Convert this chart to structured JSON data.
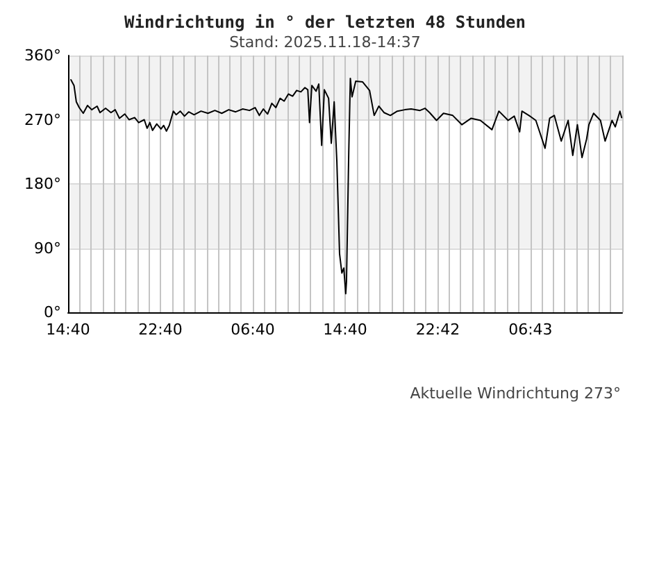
{
  "chart_data": {
    "type": "line",
    "title": "Windrichtung in ° der letzten 48 Stunden",
    "subtitle": "Stand: 2025.11.18-14:37",
    "annotations": [
      "Aktuelle Windrichtung 273°"
    ],
    "x": [
      "2025-11-16T14:55",
      "2025-11-16T15:11",
      "2025-11-16T15:23",
      "2025-11-16T15:38",
      "2025-11-16T15:59",
      "2025-11-16T16:21",
      "2025-11-16T16:43",
      "2025-11-16T17:11",
      "2025-11-16T17:26",
      "2025-11-16T17:55",
      "2025-11-16T18:23",
      "2025-11-16T18:45",
      "2025-11-16T19:07",
      "2025-11-16T19:35",
      "2025-11-16T19:57",
      "2025-11-16T20:26",
      "2025-11-16T20:47",
      "2025-11-16T21:16",
      "2025-11-16T21:31",
      "2025-11-16T21:45",
      "2025-11-16T21:59",
      "2025-11-16T22:21",
      "2025-11-16T22:43",
      "2025-11-16T22:57",
      "2025-11-16T23:11",
      "2025-11-16T23:26",
      "2025-11-16T23:47",
      "2025-11-17T00:02",
      "2025-11-17T00:23",
      "2025-11-17T00:45",
      "2025-11-17T01:07",
      "2025-11-17T01:35",
      "2025-11-17T02:11",
      "2025-11-17T02:47",
      "2025-11-17T03:23",
      "2025-11-17T03:59",
      "2025-11-17T04:35",
      "2025-11-17T05:11",
      "2025-11-17T05:47",
      "2025-11-17T06:23",
      "2025-11-17T06:52",
      "2025-11-17T07:14",
      "2025-11-17T07:35",
      "2025-11-17T07:57",
      "2025-11-17T08:19",
      "2025-11-17T08:40",
      "2025-11-17T09:02",
      "2025-11-17T09:23",
      "2025-11-17T09:45",
      "2025-11-17T10:07",
      "2025-11-17T10:28",
      "2025-11-17T10:50",
      "2025-11-17T11:11",
      "2025-11-17T11:26",
      "2025-11-17T11:35",
      "2025-11-17T11:47",
      "2025-11-17T12:09",
      "2025-11-17T12:23",
      "2025-11-17T12:38",
      "2025-11-17T12:52",
      "2025-11-17T13:14",
      "2025-11-17T13:28",
      "2025-11-17T13:43",
      "2025-11-17T13:57",
      "2025-11-17T14:11",
      "2025-11-17T14:23",
      "2025-11-17T14:33",
      "2025-11-17T14:43",
      "2025-11-17T14:47",
      "2025-11-17T14:59",
      "2025-11-17T15:07",
      "2025-11-17T15:16",
      "2025-11-17T15:35",
      "2025-11-17T16:11",
      "2025-11-17T16:47",
      "2025-11-17T17:11",
      "2025-11-17T17:35",
      "2025-11-17T18:02",
      "2025-11-17T18:35",
      "2025-11-17T19:11",
      "2025-11-17T19:50",
      "2025-11-17T20:23",
      "2025-11-17T21:09",
      "2025-11-17T21:35",
      "2025-11-17T21:59",
      "2025-11-17T22:35",
      "2025-11-17T23:11",
      "2025-11-17T23:59",
      "2025-11-18T00:47",
      "2025-11-18T01:35",
      "2025-11-18T02:23",
      "2025-11-18T03:23",
      "2025-11-18T03:59",
      "2025-11-18T04:47",
      "2025-11-18T05:19",
      "2025-11-18T05:47",
      "2025-11-18T05:59",
      "2025-11-18T06:35",
      "2025-11-18T07:11",
      "2025-11-18T07:59",
      "2025-11-18T08:23",
      "2025-11-18T08:47",
      "2025-11-18T09:23",
      "2025-11-18T09:59",
      "2025-11-18T10:23",
      "2025-11-18T10:47",
      "2025-11-18T11:11",
      "2025-11-18T11:35",
      "2025-11-18T11:47",
      "2025-11-18T12:11",
      "2025-11-18T12:47",
      "2025-11-18T13:11",
      "2025-11-18T13:47",
      "2025-11-18T14:04",
      "2025-11-18T14:28",
      "2025-11-18T14:37"
    ],
    "values": [
      326,
      318,
      295,
      287,
      279,
      290,
      284,
      289,
      280,
      286,
      280,
      284,
      272,
      278,
      270,
      273,
      266,
      270,
      258,
      266,
      255,
      264,
      257,
      262,
      254,
      262,
      282,
      277,
      282,
      275,
      281,
      277,
      282,
      279,
      283,
      279,
      284,
      281,
      285,
      283,
      287,
      276,
      285,
      278,
      293,
      287,
      300,
      296,
      306,
      303,
      311,
      309,
      315,
      312,
      266,
      318,
      310,
      320,
      234,
      312,
      300,
      237,
      295,
      211,
      82,
      55,
      62,
      26,
      43,
      227,
      328,
      302,
      324,
      323,
      311,
      276,
      289,
      280,
      276,
      282,
      284,
      285,
      283,
      286,
      280,
      269,
      279,
      276,
      263,
      272,
      269,
      256,
      282,
      269,
      275,
      253,
      282,
      276,
      269,
      230,
      272,
      276,
      240,
      269,
      220,
      263,
      217,
      243,
      263,
      279,
      269,
      240,
      269,
      260,
      282,
      273
    ],
    "color": "#000000",
    "marker": "none",
    "line_style": "solid",
    "xlim": [
      "2025-11-16T14:40",
      "2025-11-18T14:40"
    ],
    "xticks": [
      {
        "value": "2025-11-16T14:40",
        "label": "14:40"
      },
      {
        "value": "2025-11-16T15:40",
        "label": null
      },
      {
        "value": "2025-11-16T16:40",
        "label": null
      },
      {
        "value": "2025-11-16T17:40",
        "label": null
      },
      {
        "value": "2025-11-16T18:40",
        "label": null
      },
      {
        "value": "2025-11-16T19:40",
        "label": null
      },
      {
        "value": "2025-11-16T20:40",
        "label": null
      },
      {
        "value": "2025-11-16T21:40",
        "label": null
      },
      {
        "value": "2025-11-16T22:40",
        "label": "22:40"
      },
      {
        "value": "2025-11-16T23:40",
        "label": null
      },
      {
        "value": "2025-11-17T00:40",
        "label": null
      },
      {
        "value": "2025-11-17T01:40",
        "label": null
      },
      {
        "value": "2025-11-17T02:40",
        "label": null
      },
      {
        "value": "2025-11-17T03:40",
        "label": null
      },
      {
        "value": "2025-11-17T04:40",
        "label": null
      },
      {
        "value": "2025-11-17T05:40",
        "label": null
      },
      {
        "value": "2025-11-17T06:40",
        "label": "06:40"
      },
      {
        "value": "2025-11-17T07:40",
        "label": null
      },
      {
        "value": "2025-11-17T08:40",
        "label": null
      },
      {
        "value": "2025-11-17T09:40",
        "label": null
      },
      {
        "value": "2025-11-17T10:40",
        "label": null
      },
      {
        "value": "2025-11-17T11:40",
        "label": null
      },
      {
        "value": "2025-11-17T12:40",
        "label": null
      },
      {
        "value": "2025-11-17T13:40",
        "label": null
      },
      {
        "value": "2025-11-17T14:40",
        "label": "14:40"
      },
      {
        "value": "2025-11-17T15:40",
        "label": null
      },
      {
        "value": "2025-11-17T16:40",
        "label": null
      },
      {
        "value": "2025-11-17T17:40",
        "label": null
      },
      {
        "value": "2025-11-17T18:40",
        "label": null
      },
      {
        "value": "2025-11-17T19:40",
        "label": null
      },
      {
        "value": "2025-11-17T20:40",
        "label": null
      },
      {
        "value": "2025-11-17T21:40",
        "label": null
      },
      {
        "value": "2025-11-17T22:42",
        "label": "22:42"
      },
      {
        "value": "2025-11-17T23:40",
        "label": null
      },
      {
        "value": "2025-11-18T00:40",
        "label": null
      },
      {
        "value": "2025-11-18T01:40",
        "label": null
      },
      {
        "value": "2025-11-18T02:40",
        "label": null
      },
      {
        "value": "2025-11-18T03:40",
        "label": null
      },
      {
        "value": "2025-11-18T04:40",
        "label": null
      },
      {
        "value": "2025-11-18T05:40",
        "label": null
      },
      {
        "value": "2025-11-18T06:43",
        "label": "06:43"
      },
      {
        "value": "2025-11-18T07:40",
        "label": null
      },
      {
        "value": "2025-11-18T08:40",
        "label": null
      },
      {
        "value": "2025-11-18T09:40",
        "label": null
      },
      {
        "value": "2025-11-18T10:40",
        "label": null
      },
      {
        "value": "2025-11-18T11:40",
        "label": null
      },
      {
        "value": "2025-11-18T12:40",
        "label": null
      },
      {
        "value": "2025-11-18T13:40",
        "label": null
      },
      {
        "value": "2025-11-18T14:40",
        "label": null
      }
    ],
    "ylim": [
      0,
      360
    ],
    "yticks": [
      {
        "value": 0,
        "label": "0°"
      },
      {
        "value": 90,
        "label": "90°"
      },
      {
        "value": 180,
        "label": "180°"
      },
      {
        "value": 270,
        "label": "270°"
      },
      {
        "value": 360,
        "label": "360°"
      }
    ],
    "bands": [
      {
        "axis": "y",
        "from": 270,
        "to": 360,
        "color": "#f2f2f2"
      },
      {
        "axis": "y",
        "from": 90,
        "to": 180,
        "color": "#f2f2f2"
      }
    ],
    "grid": true
  }
}
